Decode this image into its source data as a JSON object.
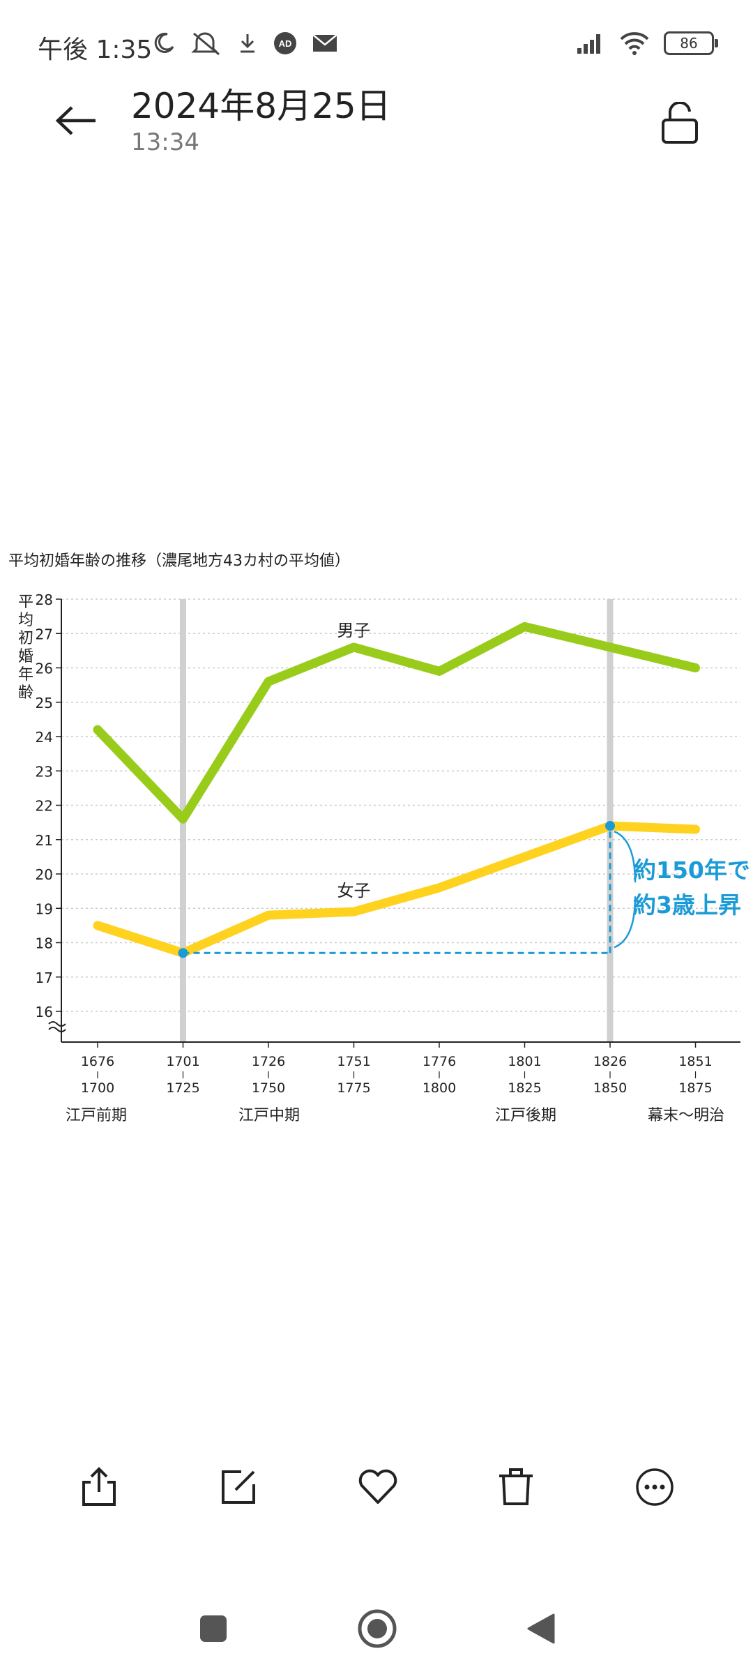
{
  "status_bar": {
    "time": "午後 1:35",
    "battery": "86",
    "icons": [
      "moon-icon",
      "mute-icon",
      "download-icon",
      "ad-icon",
      "mail-icon",
      "signal-icon",
      "wifi-icon",
      "battery-icon"
    ]
  },
  "header": {
    "title": "2024年8月25日",
    "subtitle": "13:34"
  },
  "toolbar": {
    "icons": [
      "share-icon",
      "edit-icon",
      "favorite-icon",
      "delete-icon",
      "more-icon"
    ]
  },
  "navbar": {
    "icons": [
      "recents-icon",
      "home-icon",
      "back-nav-icon"
    ]
  },
  "chart_data": {
    "type": "line",
    "title": "平均初婚年齢の推移（濃尾地方43カ村の平均値）",
    "ylabel": "平均初婚年齢",
    "ylim": [
      16,
      28
    ],
    "yticks": [
      "16",
      "17",
      "18",
      "19",
      "20",
      "21",
      "22",
      "23",
      "24",
      "25",
      "26",
      "27",
      "28"
    ],
    "categories": [
      {
        "top": "1676",
        "bottom": "1700"
      },
      {
        "top": "1701",
        "bottom": "1725"
      },
      {
        "top": "1726",
        "bottom": "1750"
      },
      {
        "top": "1751",
        "bottom": "1775"
      },
      {
        "top": "1776",
        "bottom": "1800"
      },
      {
        "top": "1801",
        "bottom": "1825"
      },
      {
        "top": "1826",
        "bottom": "1850"
      },
      {
        "top": "1851",
        "bottom": "1875"
      }
    ],
    "periods": [
      "江戸前期",
      "江戸中期",
      "江戸後期",
      "幕末〜明治"
    ],
    "series": [
      {
        "name": "男子",
        "color": "#99cc1a",
        "values": [
          24.2,
          21.6,
          25.6,
          26.6,
          25.9,
          27.2,
          26.6,
          26.0
        ]
      },
      {
        "name": "女子",
        "color": "#ffd21f",
        "values": [
          18.5,
          17.7,
          18.8,
          18.9,
          19.6,
          20.5,
          21.4,
          21.3
        ]
      }
    ],
    "annotation": {
      "line1": "約150年で",
      "line2": "約3歳上昇",
      "color": "#1a9bd7",
      "from_index": 1,
      "to_index": 6
    },
    "highlight_indices": [
      1,
      6
    ],
    "grid": true
  }
}
